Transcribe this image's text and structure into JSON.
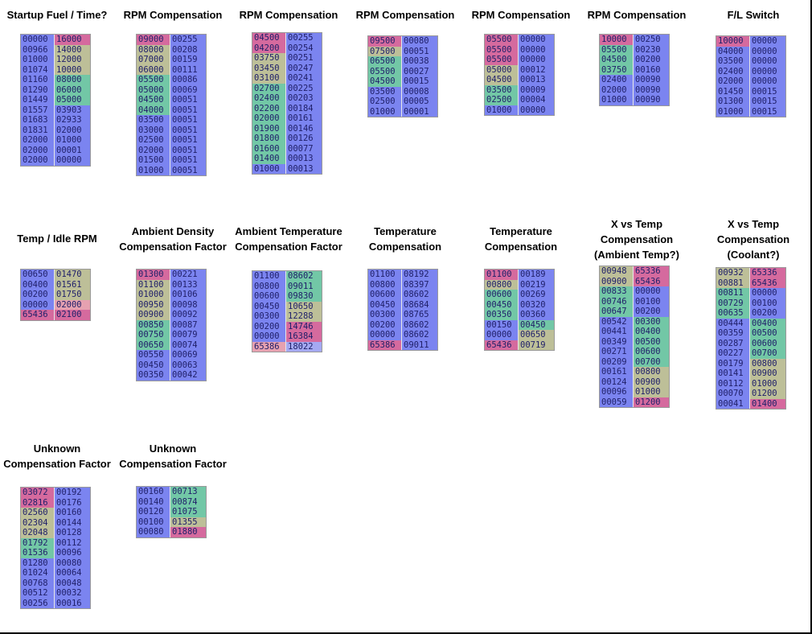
{
  "colors": {
    "b": "#7b84f0",
    "g": "#72c7a6",
    "t": "#bdbf98",
    "p": "#d56a9e",
    "k": "#e6a1b0",
    "l": "#a5a9f2"
  },
  "tables": [
    {
      "name": "startup-fuel-time",
      "title": [
        "Startup Fuel / Time?"
      ],
      "rows": [
        [
          "00000",
          "b",
          "16000",
          "p"
        ],
        [
          "00966",
          "b",
          "14000",
          "t"
        ],
        [
          "01000",
          "b",
          "12000",
          "t"
        ],
        [
          "01074",
          "b",
          "10000",
          "t"
        ],
        [
          "01160",
          "b",
          "08000",
          "g"
        ],
        [
          "01290",
          "b",
          "06000",
          "g"
        ],
        [
          "01449",
          "b",
          "05000",
          "g"
        ],
        [
          "01557",
          "b",
          "03903",
          "b"
        ],
        [
          "01683",
          "b",
          "02933",
          "b"
        ],
        [
          "01831",
          "b",
          "02000",
          "b"
        ],
        [
          "02000",
          "b",
          "01000",
          "b"
        ],
        [
          "02000",
          "b",
          "00001",
          "b"
        ],
        [
          "02000",
          "b",
          "00000",
          "b"
        ]
      ]
    },
    {
      "name": "rpm-compensation-1",
      "title": [
        "RPM Compensation"
      ],
      "rows": [
        [
          "09000",
          "p",
          "00255",
          "b"
        ],
        [
          "08000",
          "t",
          "00208",
          "b"
        ],
        [
          "07000",
          "t",
          "00159",
          "b"
        ],
        [
          "06000",
          "t",
          "00111",
          "b"
        ],
        [
          "05500",
          "g",
          "00086",
          "b"
        ],
        [
          "05000",
          "g",
          "00069",
          "b"
        ],
        [
          "04500",
          "g",
          "00051",
          "b"
        ],
        [
          "04000",
          "g",
          "00051",
          "b"
        ],
        [
          "03500",
          "b",
          "00051",
          "b"
        ],
        [
          "03000",
          "b",
          "00051",
          "b"
        ],
        [
          "02500",
          "b",
          "00051",
          "b"
        ],
        [
          "02000",
          "b",
          "00051",
          "b"
        ],
        [
          "01500",
          "b",
          "00051",
          "b"
        ],
        [
          "01000",
          "b",
          "00051",
          "b"
        ]
      ]
    },
    {
      "name": "rpm-compensation-2",
      "title": [
        "RPM Compensation"
      ],
      "rows": [
        [
          "04500",
          "p",
          "00255",
          "b"
        ],
        [
          "04200",
          "p",
          "00254",
          "b"
        ],
        [
          "03750",
          "t",
          "00251",
          "b"
        ],
        [
          "03450",
          "t",
          "00247",
          "b"
        ],
        [
          "03100",
          "t",
          "00241",
          "b"
        ],
        [
          "02700",
          "g",
          "00225",
          "b"
        ],
        [
          "02400",
          "g",
          "00203",
          "b"
        ],
        [
          "02200",
          "g",
          "00184",
          "b"
        ],
        [
          "02000",
          "g",
          "00161",
          "b"
        ],
        [
          "01900",
          "g",
          "00146",
          "b"
        ],
        [
          "01800",
          "g",
          "00126",
          "b"
        ],
        [
          "01600",
          "g",
          "00077",
          "b"
        ],
        [
          "01400",
          "g",
          "00013",
          "b"
        ],
        [
          "01000",
          "b",
          "00013",
          "b"
        ]
      ]
    },
    {
      "name": "rpm-compensation-3",
      "title": [
        "RPM Compensation"
      ],
      "rows": [
        [
          "09500",
          "p",
          "00080",
          "b"
        ],
        [
          "07500",
          "t",
          "00051",
          "b"
        ],
        [
          "06500",
          "g",
          "00038",
          "b"
        ],
        [
          "05500",
          "g",
          "00027",
          "b"
        ],
        [
          "04500",
          "g",
          "00015",
          "b"
        ],
        [
          "03500",
          "b",
          "00008",
          "b"
        ],
        [
          "02500",
          "b",
          "00005",
          "b"
        ],
        [
          "01000",
          "b",
          "00001",
          "b"
        ]
      ]
    },
    {
      "name": "rpm-compensation-4",
      "title": [
        "RPM Compensation"
      ],
      "rows": [
        [
          "05500",
          "p",
          "00000",
          "b"
        ],
        [
          "05500",
          "p",
          "00000",
          "b"
        ],
        [
          "05500",
          "p",
          "00000",
          "b"
        ],
        [
          "05000",
          "t",
          "00012",
          "b"
        ],
        [
          "04500",
          "t",
          "00013",
          "b"
        ],
        [
          "03500",
          "g",
          "00009",
          "b"
        ],
        [
          "02500",
          "g",
          "00004",
          "b"
        ],
        [
          "01000",
          "b",
          "00000",
          "b"
        ]
      ]
    },
    {
      "name": "rpm-compensation-5",
      "title": [
        "RPM Compensation"
      ],
      "rows": [
        [
          "10000",
          "p",
          "00250",
          "b"
        ],
        [
          "05500",
          "g",
          "00230",
          "b"
        ],
        [
          "04500",
          "g",
          "00200",
          "b"
        ],
        [
          "03750",
          "g",
          "00160",
          "b"
        ],
        [
          "02400",
          "b",
          "00090",
          "b"
        ],
        [
          "02000",
          "b",
          "00090",
          "b"
        ],
        [
          "01000",
          "b",
          "00090",
          "b"
        ]
      ]
    },
    {
      "name": "fl-switch",
      "title": [
        "F/L Switch"
      ],
      "rows": [
        [
          "10000",
          "p",
          "00000",
          "b"
        ],
        [
          "04000",
          "b",
          "00000",
          "b"
        ],
        [
          "03500",
          "b",
          "00000",
          "b"
        ],
        [
          "02400",
          "b",
          "00000",
          "b"
        ],
        [
          "02000",
          "b",
          "00000",
          "b"
        ],
        [
          "01450",
          "b",
          "00015",
          "b"
        ],
        [
          "01300",
          "b",
          "00015",
          "b"
        ],
        [
          "01000",
          "b",
          "00015",
          "b"
        ]
      ]
    },
    {
      "name": "temp-idle-rpm",
      "title": [
        "Temp / Idle RPM"
      ],
      "rows": [
        [
          "00650",
          "b",
          "01470",
          "t"
        ],
        [
          "00400",
          "b",
          "01561",
          "t"
        ],
        [
          "00200",
          "b",
          "01750",
          "t"
        ],
        [
          "00000",
          "b",
          "02000",
          "k"
        ],
        [
          "65436",
          "p",
          "02100",
          "p"
        ]
      ]
    },
    {
      "name": "ambient-density-compensation-factor",
      "title": [
        "Ambient Density",
        "Compensation Factor"
      ],
      "rows": [
        [
          "01300",
          "p",
          "00221",
          "b"
        ],
        [
          "01100",
          "t",
          "00133",
          "b"
        ],
        [
          "01000",
          "t",
          "00106",
          "b"
        ],
        [
          "00950",
          "t",
          "00098",
          "b"
        ],
        [
          "00900",
          "t",
          "00092",
          "b"
        ],
        [
          "00850",
          "g",
          "00087",
          "b"
        ],
        [
          "00750",
          "g",
          "00079",
          "b"
        ],
        [
          "00650",
          "g",
          "00074",
          "b"
        ],
        [
          "00550",
          "b",
          "00069",
          "b"
        ],
        [
          "00450",
          "b",
          "00063",
          "b"
        ],
        [
          "00350",
          "b",
          "00042",
          "b"
        ]
      ]
    },
    {
      "name": "ambient-temperature-compensation-factor",
      "title": [
        "Ambient Temperature",
        "Compensation Factor"
      ],
      "rows": [
        [
          "01100",
          "b",
          "08602",
          "g"
        ],
        [
          "00800",
          "b",
          "09011",
          "g"
        ],
        [
          "00600",
          "b",
          "09830",
          "g"
        ],
        [
          "00450",
          "b",
          "10650",
          "t"
        ],
        [
          "00300",
          "b",
          "12288",
          "t"
        ],
        [
          "00200",
          "b",
          "14746",
          "p"
        ],
        [
          "00000",
          "b",
          "16384",
          "p"
        ],
        [
          "65386",
          "k",
          "18022",
          "l"
        ]
      ]
    },
    {
      "name": "temperature-compensation-1",
      "title": [
        "Temperature",
        "Compensation"
      ],
      "rows": [
        [
          "01100",
          "b",
          "08192",
          "b"
        ],
        [
          "00800",
          "b",
          "08397",
          "b"
        ],
        [
          "00600",
          "b",
          "08602",
          "b"
        ],
        [
          "00450",
          "b",
          "08684",
          "b"
        ],
        [
          "00300",
          "b",
          "08765",
          "b"
        ],
        [
          "00200",
          "b",
          "08602",
          "b"
        ],
        [
          "00000",
          "b",
          "08602",
          "b"
        ],
        [
          "65386",
          "p",
          "09011",
          "b"
        ]
      ]
    },
    {
      "name": "temperature-compensation-2",
      "title": [
        "Temperature",
        "Compensation"
      ],
      "rows": [
        [
          "01100",
          "p",
          "00189",
          "b"
        ],
        [
          "00800",
          "t",
          "00219",
          "b"
        ],
        [
          "00600",
          "g",
          "00269",
          "b"
        ],
        [
          "00450",
          "g",
          "00320",
          "b"
        ],
        [
          "00350",
          "g",
          "00360",
          "b"
        ],
        [
          "00150",
          "b",
          "00450",
          "g"
        ],
        [
          "00000",
          "b",
          "00650",
          "t"
        ],
        [
          "65436",
          "p",
          "00719",
          "t"
        ]
      ]
    },
    {
      "name": "x-vs-temp-ambient",
      "title": [
        "X vs Temp",
        "Compensation",
        "(Ambient Temp?)"
      ],
      "rows": [
        [
          "00948",
          "t",
          "65336",
          "p"
        ],
        [
          "00900",
          "t",
          "65436",
          "p"
        ],
        [
          "00833",
          "g",
          "00000",
          "b"
        ],
        [
          "00746",
          "g",
          "00100",
          "b"
        ],
        [
          "00647",
          "g",
          "00200",
          "b"
        ],
        [
          "00542",
          "b",
          "00300",
          "g"
        ],
        [
          "00441",
          "b",
          "00400",
          "g"
        ],
        [
          "00349",
          "b",
          "00500",
          "g"
        ],
        [
          "00271",
          "b",
          "00600",
          "g"
        ],
        [
          "00209",
          "b",
          "00700",
          "g"
        ],
        [
          "00161",
          "b",
          "00800",
          "t"
        ],
        [
          "00124",
          "b",
          "00900",
          "t"
        ],
        [
          "00096",
          "b",
          "01000",
          "t"
        ],
        [
          "00059",
          "b",
          "01200",
          "p"
        ]
      ]
    },
    {
      "name": "x-vs-temp-coolant",
      "title": [
        "X vs Temp",
        "Compensation",
        "(Coolant?)"
      ],
      "rows": [
        [
          "00932",
          "t",
          "65336",
          "p"
        ],
        [
          "00881",
          "t",
          "65436",
          "p"
        ],
        [
          "00811",
          "g",
          "00000",
          "b"
        ],
        [
          "00729",
          "g",
          "00100",
          "b"
        ],
        [
          "00635",
          "g",
          "00200",
          "b"
        ],
        [
          "00444",
          "b",
          "00400",
          "g"
        ],
        [
          "00359",
          "b",
          "00500",
          "g"
        ],
        [
          "00287",
          "b",
          "00600",
          "g"
        ],
        [
          "00227",
          "b",
          "00700",
          "g"
        ],
        [
          "00179",
          "b",
          "00800",
          "t"
        ],
        [
          "00141",
          "b",
          "00900",
          "t"
        ],
        [
          "00112",
          "b",
          "01000",
          "t"
        ],
        [
          "00070",
          "b",
          "01200",
          "t"
        ],
        [
          "00041",
          "b",
          "01400",
          "p"
        ]
      ]
    },
    {
      "name": "unknown-compensation-factor-1",
      "title": [
        "Unknown",
        "Compensation Factor"
      ],
      "rows": [
        [
          "03072",
          "p",
          "00192",
          "b"
        ],
        [
          "02816",
          "p",
          "00176",
          "b"
        ],
        [
          "02560",
          "t",
          "00160",
          "b"
        ],
        [
          "02304",
          "t",
          "00144",
          "b"
        ],
        [
          "02048",
          "t",
          "00128",
          "b"
        ],
        [
          "01792",
          "g",
          "00112",
          "b"
        ],
        [
          "01536",
          "g",
          "00096",
          "b"
        ],
        [
          "01280",
          "b",
          "00080",
          "b"
        ],
        [
          "01024",
          "b",
          "00064",
          "b"
        ],
        [
          "00768",
          "b",
          "00048",
          "b"
        ],
        [
          "00512",
          "b",
          "00032",
          "b"
        ],
        [
          "00256",
          "b",
          "00016",
          "b"
        ]
      ]
    },
    {
      "name": "unknown-compensation-factor-2",
      "title": [
        "Unknown",
        "Compensation Factor"
      ],
      "rows": [
        [
          "00160",
          "b",
          "00713",
          "g"
        ],
        [
          "00140",
          "b",
          "00874",
          "g"
        ],
        [
          "00120",
          "b",
          "01075",
          "g"
        ],
        [
          "00100",
          "b",
          "01355",
          "t"
        ],
        [
          "00080",
          "b",
          "01880",
          "p"
        ]
      ]
    }
  ]
}
